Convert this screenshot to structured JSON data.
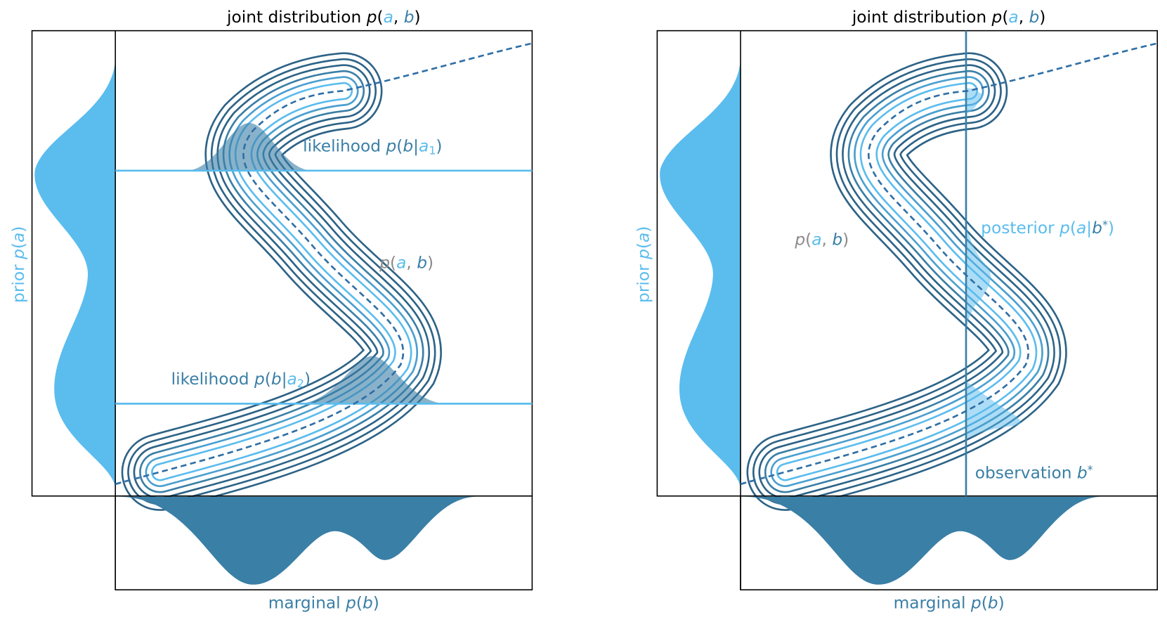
{
  "panels": [
    {
      "title": [
        "joint distribution ",
        "p",
        "(",
        "a",
        ", ",
        "b",
        ")"
      ],
      "y_label": [
        "prior ",
        "p",
        "(",
        "a",
        ")"
      ],
      "x_label": [
        "marginal ",
        "p",
        "(",
        "b",
        ")"
      ],
      "annotations": [
        [
          "likelihood ",
          "p",
          "(",
          "b",
          "|",
          "a",
          "1",
          ")"
        ],
        [
          "p",
          "(",
          "a",
          ", ",
          "b",
          ")"
        ],
        [
          "likelihood ",
          "p",
          "(",
          "b",
          "|",
          "a",
          "2",
          ")"
        ]
      ]
    },
    {
      "title": [
        "joint distribution ",
        "p",
        "(",
        "a",
        ", ",
        "b",
        ")"
      ],
      "y_label": [
        "prior ",
        "p",
        "(",
        "a",
        ")"
      ],
      "x_label": [
        "marginal ",
        "p",
        "(",
        "b",
        ")"
      ],
      "annotations": [
        [
          "p",
          "(",
          "a",
          ", ",
          "b",
          ")"
        ],
        [
          "posterior ",
          "p",
          "(",
          "a",
          "|",
          "b",
          "*",
          ")"
        ],
        [
          "observation ",
          "b",
          "*"
        ]
      ]
    }
  ]
}
